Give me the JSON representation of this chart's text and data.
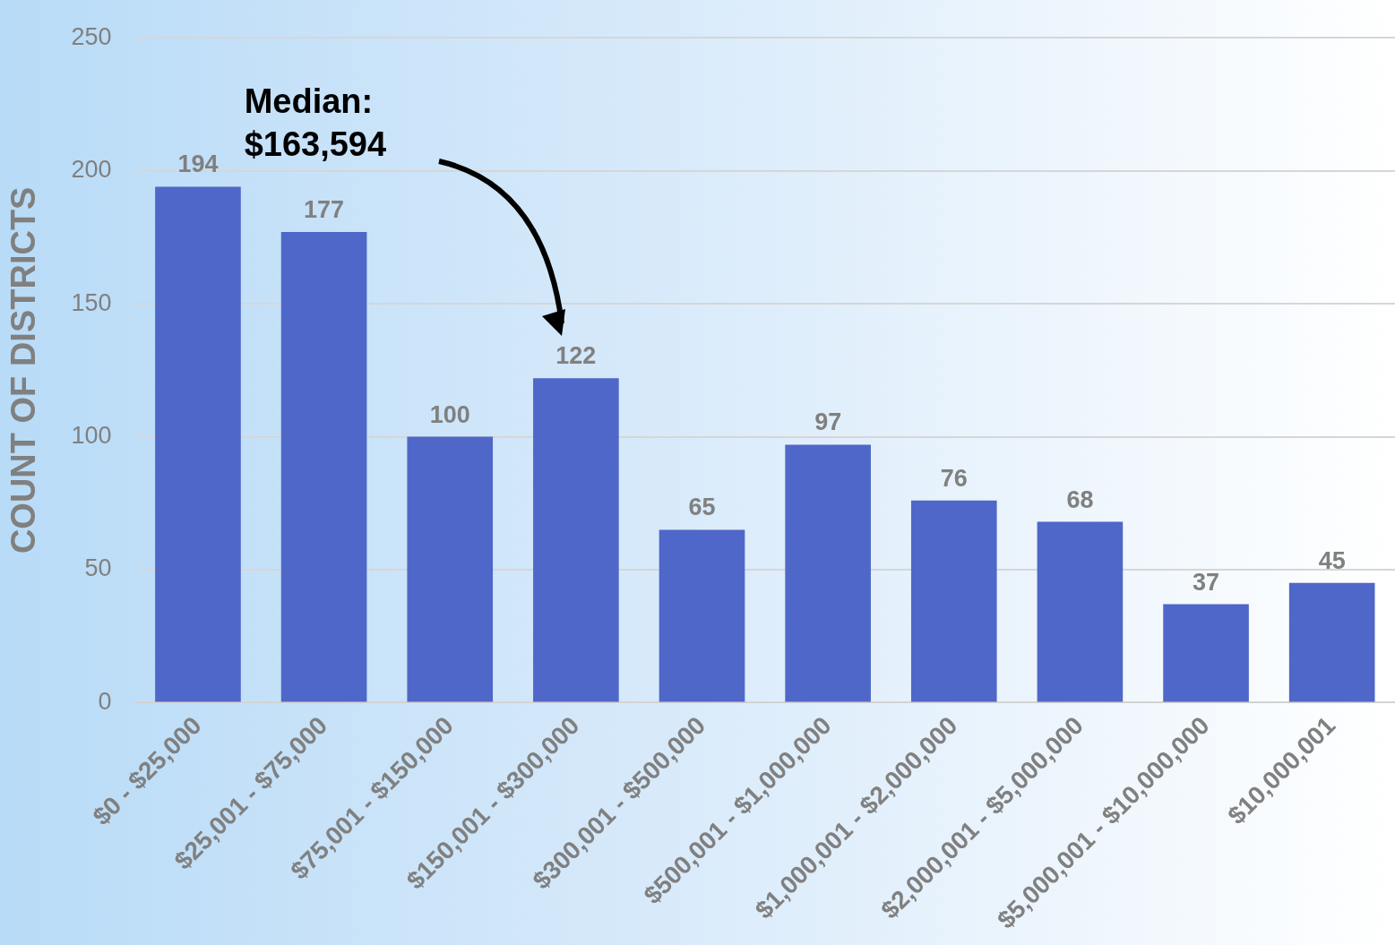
{
  "chart_data": {
    "type": "bar",
    "ylabel": "COUNT OF DISTRICTS",
    "categories": [
      "$0 - $25,000",
      "$25,001 - $75,000",
      "$75,001 - $150,000",
      "$150,001 - $300,000",
      "$300,001 - $500,000",
      "$500,001 - $1,000,000",
      "$1,000,001 - $2,000,000",
      "$2,000,001 - $5,000,000",
      "$5,000,001 - $10,000,000",
      "$10,000,001"
    ],
    "values": [
      194,
      177,
      100,
      122,
      65,
      97,
      76,
      68,
      37,
      45
    ],
    "color": "#4f67c8",
    "ylim": [
      0,
      250
    ],
    "yticks": [
      0,
      50,
      100,
      150,
      200,
      250
    ],
    "grid": "y",
    "data_labels": true,
    "legend": false,
    "annotations": [
      "Median:\n$163,594"
    ]
  }
}
